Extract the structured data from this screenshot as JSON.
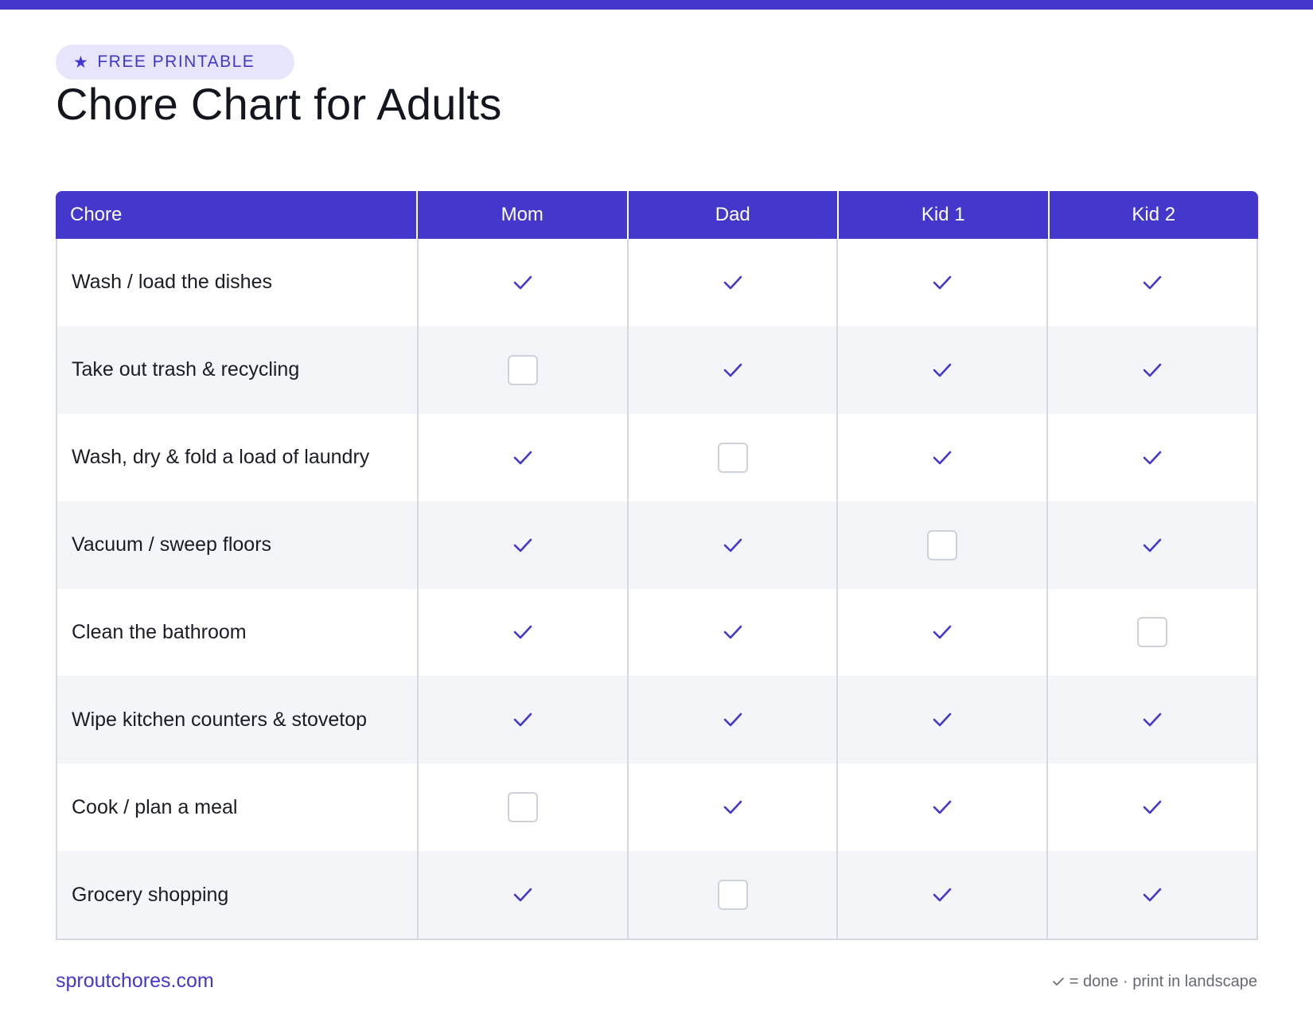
{
  "badge": {
    "icon": "star-icon",
    "label": "FREE PRINTABLE"
  },
  "title": "Chore Chart for Adults",
  "table": {
    "columns": [
      "Chore",
      "Mom",
      "Dad",
      "Kid 1",
      "Kid 2"
    ],
    "rows": [
      {
        "chore": "Wash / load the dishes",
        "done": [
          true,
          true,
          true,
          true
        ]
      },
      {
        "chore": "Take out trash & recycling",
        "done": [
          false,
          true,
          true,
          true
        ]
      },
      {
        "chore": "Wash, dry & fold a load of laundry",
        "done": [
          true,
          false,
          true,
          true
        ]
      },
      {
        "chore": "Vacuum / sweep floors",
        "done": [
          true,
          true,
          false,
          true
        ]
      },
      {
        "chore": "Clean the bathroom",
        "done": [
          true,
          true,
          true,
          false
        ]
      },
      {
        "chore": "Wipe kitchen counters & stovetop",
        "done": [
          true,
          true,
          true,
          true
        ]
      },
      {
        "chore": "Cook / plan a meal",
        "done": [
          false,
          true,
          true,
          true
        ]
      },
      {
        "chore": "Grocery shopping",
        "done": [
          true,
          false,
          true,
          true
        ]
      }
    ]
  },
  "footer": {
    "site": "sproutchores.com",
    "legend_text": "= done · print in landscape"
  },
  "colors": {
    "accent": "#4438cc",
    "stripe": "#f4f5f9",
    "border": "#d6d9e1"
  }
}
